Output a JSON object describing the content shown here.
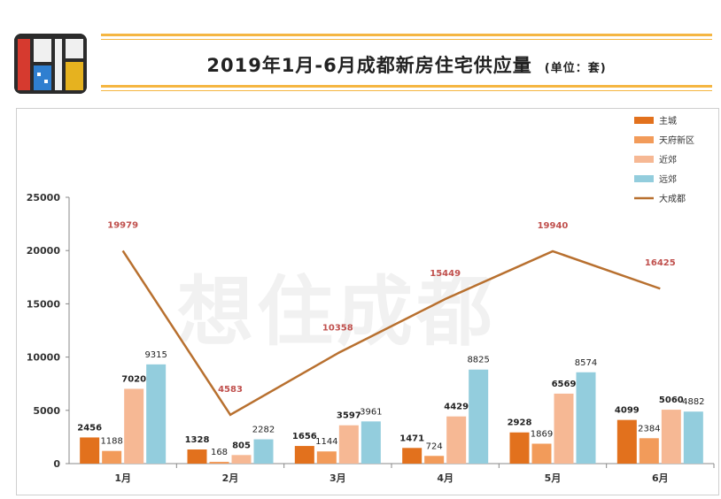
{
  "header": {
    "title": "2019年1月-6月成都新房住宅供应量",
    "unit": "(单位：套)"
  },
  "watermark": "想住成都",
  "colors": {
    "accent_line": "#f5b642",
    "main_city": "#e2711d",
    "tianfu": "#f29b5a",
    "near_suburb": "#f6b894",
    "far_suburb": "#93cddd",
    "greater_chengdu": "#b8702f",
    "line_label": "#c0504d"
  },
  "chart_data": {
    "type": "bar",
    "categories": [
      "1月",
      "2月",
      "3月",
      "4月",
      "5月",
      "6月"
    ],
    "series": [
      {
        "name": "主城",
        "values": [
          2456,
          1328,
          1656,
          1471,
          2928,
          4099
        ]
      },
      {
        "name": "天府新区",
        "values": [
          1188,
          168,
          1144,
          724,
          1869,
          2384
        ]
      },
      {
        "name": "近郊",
        "values": [
          7020,
          805,
          3597,
          4429,
          6569,
          5060
        ]
      },
      {
        "name": "远郊",
        "values": [
          9315,
          2282,
          3961,
          8825,
          8574,
          4882
        ]
      },
      {
        "name": "大成都",
        "type": "line",
        "values": [
          19979,
          4583,
          10358,
          15449,
          19940,
          16425
        ]
      }
    ],
    "yticks": [
      0,
      5000,
      10000,
      15000,
      20000,
      25000
    ],
    "ylim": [
      0,
      25000
    ],
    "legend_position": "top-right",
    "grid": false
  }
}
